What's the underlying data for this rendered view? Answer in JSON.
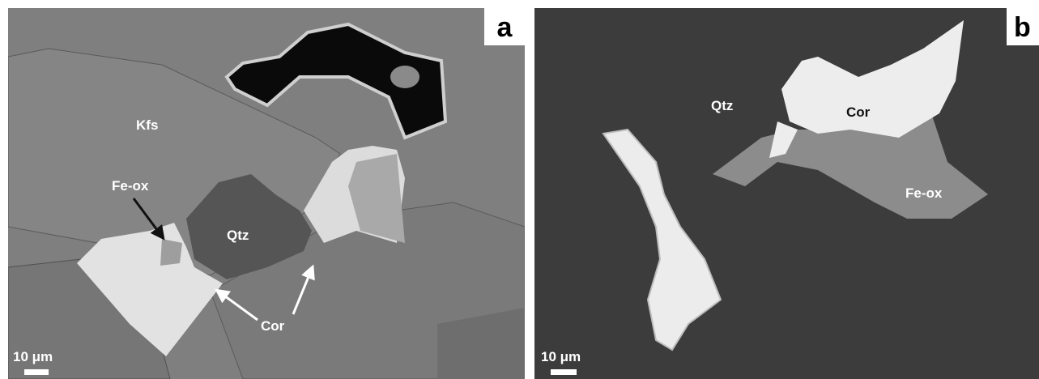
{
  "panels": [
    {
      "label": "a",
      "annotations": [
        "Kfs",
        "Fe-ox",
        "Qtz",
        "Cor"
      ],
      "scale_bar": "10 μm"
    },
    {
      "label": "b",
      "annotations": [
        "Qtz",
        "Cor",
        "Fe-ox"
      ],
      "scale_bar": "10 μm"
    }
  ]
}
